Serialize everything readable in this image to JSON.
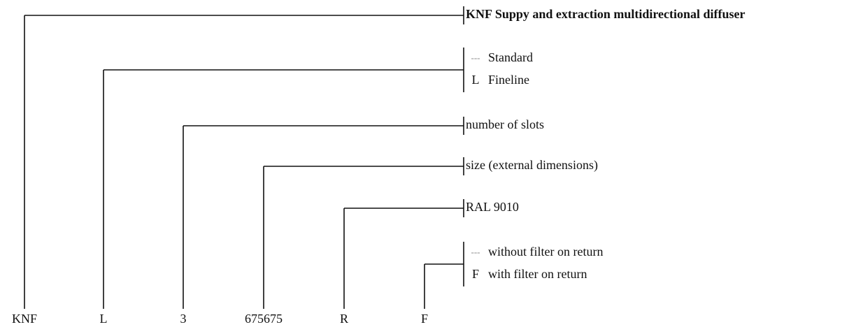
{
  "items": [
    {
      "code": "KNF",
      "label": "KNF Suppy and extraction multidirectional diffuser"
    },
    {
      "code": "L",
      "options": [
        {
          "code": "---",
          "label": "Standard"
        },
        {
          "code": "L",
          "label": "Fineline"
        }
      ]
    },
    {
      "code": "3",
      "label": "number of slots"
    },
    {
      "code": "675675",
      "label": "size (external dimensions)"
    },
    {
      "code": "R",
      "label": "RAL 9010"
    },
    {
      "code": "F",
      "options": [
        {
          "code": "---",
          "label": "without filter on return"
        },
        {
          "code": "F",
          "label": "with filter on return"
        }
      ]
    }
  ]
}
